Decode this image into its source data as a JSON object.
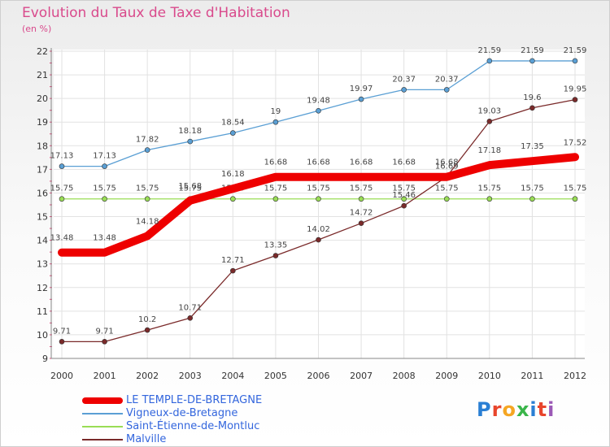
{
  "title": "Evolution du Taux de Taxe d'Habitation",
  "subtitle": "(en %)",
  "logo": {
    "text": "Proxiti",
    "letter_colors": [
      "#2a7fd4",
      "#e8452c",
      "#f5a623",
      "#3ab54a",
      "#2a7fd4",
      "#e8452c",
      "#9b59b6"
    ]
  },
  "chart_data": {
    "type": "line",
    "title": "Evolution du Taux de Taxe d'Habitation",
    "ylabel": "(en %)",
    "xlabel": "",
    "x": [
      "2000",
      "2001",
      "2002",
      "2003",
      "2004",
      "2005",
      "2006",
      "2007",
      "2008",
      "2009",
      "2010",
      "2011",
      "2012"
    ],
    "ylim": [
      9,
      22
    ],
    "yticks": [
      "9",
      "10",
      "11",
      "12",
      "13",
      "14",
      "15",
      "16",
      "17",
      "18",
      "19",
      "20",
      "21",
      "22"
    ],
    "grid": true,
    "legend_position": "bottom-left",
    "series": [
      {
        "name": "Vigneux-de-Bretagne",
        "color": "#5a9fd4",
        "values": [
          17.13,
          17.13,
          17.82,
          18.18,
          18.54,
          19,
          19.48,
          19.97,
          20.37,
          20.37,
          21.59,
          21.59,
          21.59
        ]
      },
      {
        "name": "Saint-Étienne-de-Montluc",
        "color": "#99dd55",
        "values": [
          15.75,
          15.75,
          15.75,
          15.75,
          15.75,
          15.75,
          15.75,
          15.75,
          15.75,
          15.75,
          15.75,
          15.75,
          15.75
        ]
      },
      {
        "name": "Malville",
        "color": "#7a2a2a",
        "values": [
          9.71,
          9.71,
          10.2,
          10.71,
          12.71,
          13.35,
          14.02,
          14.72,
          15.46,
          16.69,
          19.03,
          19.6,
          19.95
        ]
      },
      {
        "name": "LE TEMPLE-DE-BRETAGNE",
        "color": "#ee0000",
        "values": [
          13.48,
          13.48,
          14.18,
          15.68,
          16.18,
          16.68,
          16.68,
          16.68,
          16.68,
          16.68,
          17.18,
          17.35,
          17.52
        ]
      }
    ]
  },
  "legend": [
    {
      "name": "LE TEMPLE-DE-BRETAGNE",
      "color": "#ee0000"
    },
    {
      "name": "Vigneux-de-Bretagne",
      "color": "#5a9fd4"
    },
    {
      "name": "Saint-Étienne-de-Montluc",
      "color": "#99dd55"
    },
    {
      "name": "Malville",
      "color": "#7a2a2a"
    }
  ]
}
